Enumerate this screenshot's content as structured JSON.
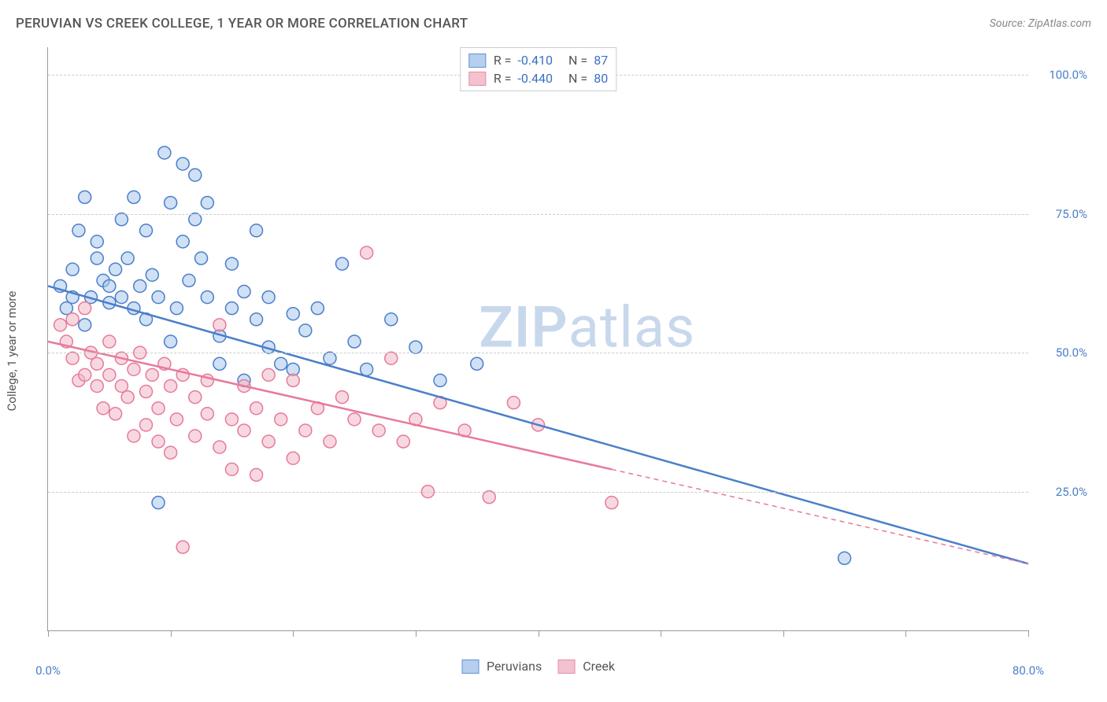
{
  "title": "PERUVIAN VS CREEK COLLEGE, 1 YEAR OR MORE CORRELATION CHART",
  "source": "Source: ZipAtlas.com",
  "ylabel": "College, 1 year or more",
  "watermark_bold": "ZIP",
  "watermark_rest": "atlas",
  "chart": {
    "type": "scatter-with-regression",
    "background_color": "#ffffff",
    "grid_color": "#cccccc",
    "axis_color": "#999999",
    "tick_label_color": "#4a7fc9",
    "xlim": [
      0,
      80
    ],
    "ylim": [
      0,
      105
    ],
    "xticks": [
      0,
      10,
      20,
      30,
      40,
      50,
      60,
      70,
      80
    ],
    "xtick_labels": {
      "0": "0.0%",
      "80": "80.0%"
    },
    "yticks": [
      25,
      50,
      75,
      100
    ],
    "ytick_labels": [
      "25.0%",
      "50.0%",
      "75.0%",
      "100.0%"
    ],
    "marker_radius": 8,
    "marker_stroke_width": 1.5,
    "line_width": 2.5,
    "series": [
      {
        "name": "Peruvians",
        "fill_color": "#a9c7ec",
        "stroke_color": "#4a7fc9",
        "fill_opacity": 0.55,
        "R": "-0.410",
        "N": "87",
        "regression": {
          "x1": 0,
          "y1": 62,
          "x2": 80,
          "y2": 12,
          "dashed_from_x": null
        },
        "points": [
          [
            1,
            62
          ],
          [
            1.5,
            58
          ],
          [
            2,
            60
          ],
          [
            2,
            65
          ],
          [
            2.5,
            72
          ],
          [
            3,
            78
          ],
          [
            3,
            55
          ],
          [
            3.5,
            60
          ],
          [
            4,
            70
          ],
          [
            4,
            67
          ],
          [
            4.5,
            63
          ],
          [
            5,
            62
          ],
          [
            5,
            59
          ],
          [
            5.5,
            65
          ],
          [
            6,
            74
          ],
          [
            6,
            60
          ],
          [
            6.5,
            67
          ],
          [
            7,
            78
          ],
          [
            7,
            58
          ],
          [
            7.5,
            62
          ],
          [
            8,
            72
          ],
          [
            8,
            56
          ],
          [
            8.5,
            64
          ],
          [
            9,
            60
          ],
          [
            9,
            23
          ],
          [
            9.5,
            86
          ],
          [
            10,
            77
          ],
          [
            10,
            52
          ],
          [
            10.5,
            58
          ],
          [
            11,
            84
          ],
          [
            11,
            70
          ],
          [
            11.5,
            63
          ],
          [
            12,
            74
          ],
          [
            12,
            82
          ],
          [
            12.5,
            67
          ],
          [
            13,
            60
          ],
          [
            13,
            77
          ],
          [
            14,
            53
          ],
          [
            14,
            48
          ],
          [
            15,
            66
          ],
          [
            15,
            58
          ],
          [
            16,
            61
          ],
          [
            16,
            45
          ],
          [
            17,
            72
          ],
          [
            17,
            56
          ],
          [
            18,
            60
          ],
          [
            18,
            51
          ],
          [
            19,
            48
          ],
          [
            20,
            57
          ],
          [
            20,
            47
          ],
          [
            21,
            54
          ],
          [
            22,
            58
          ],
          [
            23,
            49
          ],
          [
            24,
            66
          ],
          [
            25,
            52
          ],
          [
            26,
            47
          ],
          [
            28,
            56
          ],
          [
            30,
            51
          ],
          [
            32,
            45
          ],
          [
            35,
            48
          ],
          [
            65,
            13
          ]
        ]
      },
      {
        "name": "Creek",
        "fill_color": "#f2b8c6",
        "stroke_color": "#e67a9a",
        "fill_opacity": 0.55,
        "R": "-0.440",
        "N": "80",
        "regression": {
          "x1": 0,
          "y1": 52,
          "x2": 80,
          "y2": 12,
          "dashed_from_x": 46
        },
        "points": [
          [
            1,
            55
          ],
          [
            1.5,
            52
          ],
          [
            2,
            56
          ],
          [
            2,
            49
          ],
          [
            2.5,
            45
          ],
          [
            3,
            58
          ],
          [
            3,
            46
          ],
          [
            3.5,
            50
          ],
          [
            4,
            44
          ],
          [
            4,
            48
          ],
          [
            4.5,
            40
          ],
          [
            5,
            46
          ],
          [
            5,
            52
          ],
          [
            5.5,
            39
          ],
          [
            6,
            44
          ],
          [
            6,
            49
          ],
          [
            6.5,
            42
          ],
          [
            7,
            35
          ],
          [
            7,
            47
          ],
          [
            7.5,
            50
          ],
          [
            8,
            37
          ],
          [
            8,
            43
          ],
          [
            8.5,
            46
          ],
          [
            9,
            34
          ],
          [
            9,
            40
          ],
          [
            9.5,
            48
          ],
          [
            10,
            32
          ],
          [
            10,
            44
          ],
          [
            10.5,
            38
          ],
          [
            11,
            46
          ],
          [
            11,
            15
          ],
          [
            12,
            42
          ],
          [
            12,
            35
          ],
          [
            13,
            39
          ],
          [
            13,
            45
          ],
          [
            14,
            33
          ],
          [
            14,
            55
          ],
          [
            15,
            38
          ],
          [
            15,
            29
          ],
          [
            16,
            44
          ],
          [
            16,
            36
          ],
          [
            17,
            40
          ],
          [
            17,
            28
          ],
          [
            18,
            46
          ],
          [
            18,
            34
          ],
          [
            19,
            38
          ],
          [
            20,
            45
          ],
          [
            20,
            31
          ],
          [
            21,
            36
          ],
          [
            22,
            40
          ],
          [
            23,
            34
          ],
          [
            24,
            42
          ],
          [
            25,
            38
          ],
          [
            26,
            68
          ],
          [
            27,
            36
          ],
          [
            28,
            49
          ],
          [
            29,
            34
          ],
          [
            30,
            38
          ],
          [
            31,
            25
          ],
          [
            32,
            41
          ],
          [
            34,
            36
          ],
          [
            36,
            24
          ],
          [
            38,
            41
          ],
          [
            40,
            37
          ],
          [
            46,
            23
          ]
        ]
      }
    ]
  },
  "legend_labels": {
    "R_label": "R =",
    "N_label": "N ="
  }
}
